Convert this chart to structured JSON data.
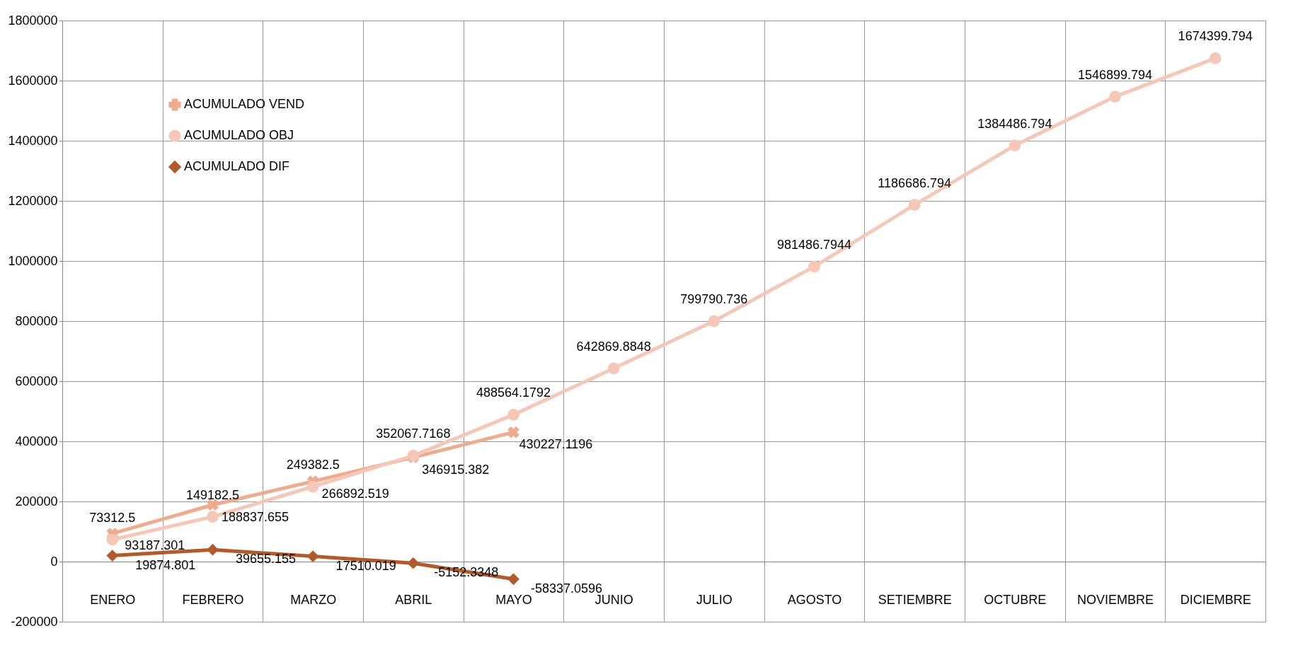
{
  "chart_data": {
    "type": "line",
    "categories": [
      "ENERO",
      "FEBRERO",
      "MARZO",
      "ABRIL",
      "MAYO",
      "JUNIO",
      "JULIO",
      "AGOSTO",
      "SETIEMBRE",
      "OCTUBRE",
      "NOVIEMBRE",
      "DICIEMBRE"
    ],
    "series": [
      {
        "name": "ACUMULADO VEND",
        "color": "#f0aa8c",
        "marker": "cross",
        "values": [
          93187.301,
          188837.655,
          266892.519,
          346915.382,
          430227.1196,
          null,
          null,
          null,
          null,
          null,
          null,
          null
        ]
      },
      {
        "name": "ACUMULADO OBJ",
        "color": "#f6c7b6",
        "marker": "circle",
        "values": [
          73312.5,
          149182.5,
          249382.5,
          352067.7168,
          488564.1792,
          642869.8848,
          799790.736,
          981486.7944,
          1186686.794,
          1384486.794,
          1546899.794,
          1674399.794
        ]
      },
      {
        "name": "ACUMULADO DIF",
        "color": "#b35a28",
        "marker": "diamond",
        "values": [
          19874.801,
          39655.155,
          17510.019,
          -5152.3348,
          -58337.0596,
          null,
          null,
          null,
          null,
          null,
          null,
          null
        ]
      }
    ],
    "ylim": [
      -200000,
      1800000
    ],
    "yticks": [
      -200000,
      0,
      200000,
      400000,
      600000,
      800000,
      1000000,
      1200000,
      1400000,
      1600000,
      1800000
    ],
    "grid": true,
    "legend": "top left",
    "data_labels": true
  }
}
